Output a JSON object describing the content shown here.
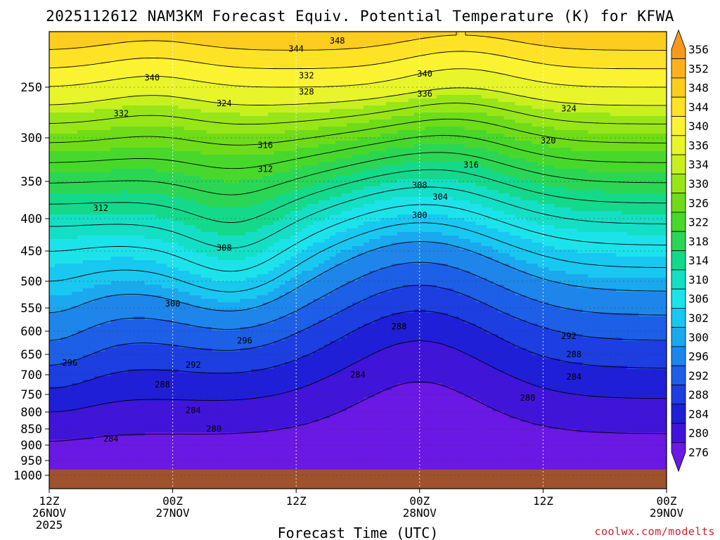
{
  "title": "2025112612 NAM3KM Forecast Equiv. Potential Temperature (K) for KFWA",
  "x_axis": {
    "label": "Forecast Time (UTC)",
    "ticks": [
      {
        "time": "12Z",
        "day": "26NOV",
        "year": "2025"
      },
      {
        "time": "00Z",
        "day": "27NOV",
        "year": ""
      },
      {
        "time": "12Z",
        "day": "",
        "year": ""
      },
      {
        "time": "00Z",
        "day": "28NOV",
        "year": ""
      },
      {
        "time": "12Z",
        "day": "",
        "year": ""
      },
      {
        "time": "00Z",
        "day": "29NOV",
        "year": ""
      }
    ]
  },
  "credit": "coolwx.com/modelts",
  "colorbar": {
    "levels": [
      356,
      352,
      348,
      344,
      340,
      336,
      334,
      330,
      326,
      322,
      318,
      314,
      310,
      306,
      302,
      300,
      296,
      292,
      288,
      284,
      280,
      276
    ],
    "colors": [
      "#f59a1c",
      "#fbb21a",
      "#fccc1e",
      "#fde226",
      "#fbf331",
      "#e7f52a",
      "#c8f020",
      "#99e618",
      "#6edc19",
      "#48d82c",
      "#2bd654",
      "#14d98a",
      "#14dfc4",
      "#1ce3ea",
      "#18c8f0",
      "#1aa8ee",
      "#1e86ea",
      "#1d5fe6",
      "#1d3ee0",
      "#1f1fd8",
      "#4114d9",
      "#6a18e3"
    ]
  },
  "ground_color": "#a0522d",
  "chart_data": {
    "type": "heatmap",
    "title": "2025112612 NAM3KM Forecast Equiv. Potential Temperature (K) for KFWA",
    "xlabel": "Forecast Time (UTC)",
    "ylabel": "",
    "x_range_hours": [
      0,
      60
    ],
    "x_tick_hours": [
      0,
      12,
      24,
      36,
      48,
      60
    ],
    "y_ticks_hpa": [
      250,
      300,
      350,
      400,
      450,
      500,
      550,
      600,
      650,
      700,
      750,
      800,
      850,
      900,
      950,
      1000
    ],
    "y_range_hpa": [
      200,
      1025
    ],
    "ground_pressure_hpa": 980,
    "units": "K",
    "contour_interval_k": 2,
    "labeled_contours": [
      {
        "value": 348,
        "hour": 28,
        "p": 205
      },
      {
        "value": 344,
        "hour": 24,
        "p": 212
      },
      {
        "value": 340,
        "hour": 10,
        "p": 240
      },
      {
        "value": 340,
        "hour": 36.5,
        "p": 236
      },
      {
        "value": 336,
        "hour": 36.5,
        "p": 256
      },
      {
        "value": 332,
        "hour": 7,
        "p": 275
      },
      {
        "value": 332,
        "hour": 25,
        "p": 238
      },
      {
        "value": 328,
        "hour": 25,
        "p": 254
      },
      {
        "value": 324,
        "hour": 17,
        "p": 265
      },
      {
        "value": 324,
        "hour": 50.5,
        "p": 270
      },
      {
        "value": 320,
        "hour": 48.5,
        "p": 303
      },
      {
        "value": 316,
        "hour": 21,
        "p": 308
      },
      {
        "value": 316,
        "hour": 41,
        "p": 330
      },
      {
        "value": 312,
        "hour": 5,
        "p": 385
      },
      {
        "value": 312,
        "hour": 21,
        "p": 335
      },
      {
        "value": 308,
        "hour": 17,
        "p": 445
      },
      {
        "value": 308,
        "hour": 36,
        "p": 355
      },
      {
        "value": 304,
        "hour": 38,
        "p": 370
      },
      {
        "value": 300,
        "hour": 12,
        "p": 542
      },
      {
        "value": 300,
        "hour": 36,
        "p": 395
      },
      {
        "value": 296,
        "hour": 2,
        "p": 670
      },
      {
        "value": 296,
        "hour": 19,
        "p": 620
      },
      {
        "value": 292,
        "hour": 14,
        "p": 675
      },
      {
        "value": 292,
        "hour": 50.5,
        "p": 610
      },
      {
        "value": 288,
        "hour": 11,
        "p": 725
      },
      {
        "value": 288,
        "hour": 34,
        "p": 590
      },
      {
        "value": 288,
        "hour": 51,
        "p": 650
      },
      {
        "value": 284,
        "hour": 14,
        "p": 795
      },
      {
        "value": 284,
        "hour": 6,
        "p": 880
      },
      {
        "value": 284,
        "hour": 30,
        "p": 700
      },
      {
        "value": 284,
        "hour": 51,
        "p": 705
      },
      {
        "value": 280,
        "hour": 16,
        "p": 850
      },
      {
        "value": 280,
        "hour": 46.5,
        "p": 760
      }
    ]
  }
}
